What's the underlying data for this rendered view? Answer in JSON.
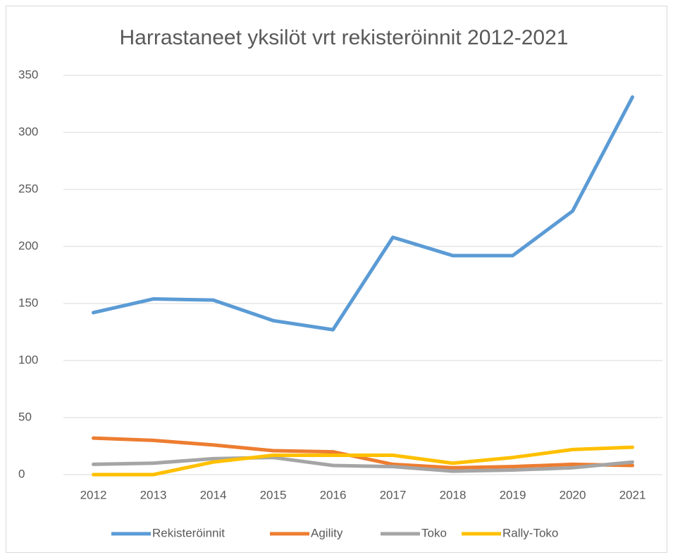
{
  "chart_data": {
    "type": "line",
    "title": "Harrastaneet yksilöt vrt rekisteröinnit 2012-2021",
    "categories": [
      "2012",
      "2013",
      "2014",
      "2015",
      "2016",
      "2017",
      "2018",
      "2019",
      "2020",
      "2021"
    ],
    "series": [
      {
        "name": "Rekisteröinnit",
        "color": "#5b9bd5",
        "values": [
          142,
          154,
          153,
          135,
          127,
          208,
          192,
          192,
          231,
          331
        ]
      },
      {
        "name": "Agility",
        "color": "#ed7d31",
        "values": [
          32,
          30,
          26,
          21,
          20,
          9,
          6,
          7,
          9,
          8
        ]
      },
      {
        "name": "Toko",
        "color": "#a5a5a5",
        "values": [
          9,
          10,
          14,
          15,
          8,
          7,
          3,
          4,
          6,
          11
        ]
      },
      {
        "name": "Rally-Toko",
        "color": "#ffc000",
        "values": [
          0,
          0,
          11,
          17,
          17,
          17,
          10,
          15,
          22,
          24
        ]
      }
    ],
    "ylim": [
      0,
      350
    ],
    "yticks": [
      0,
      50,
      100,
      150,
      200,
      250,
      300,
      350
    ],
    "grid": true,
    "legend": "bottom"
  }
}
